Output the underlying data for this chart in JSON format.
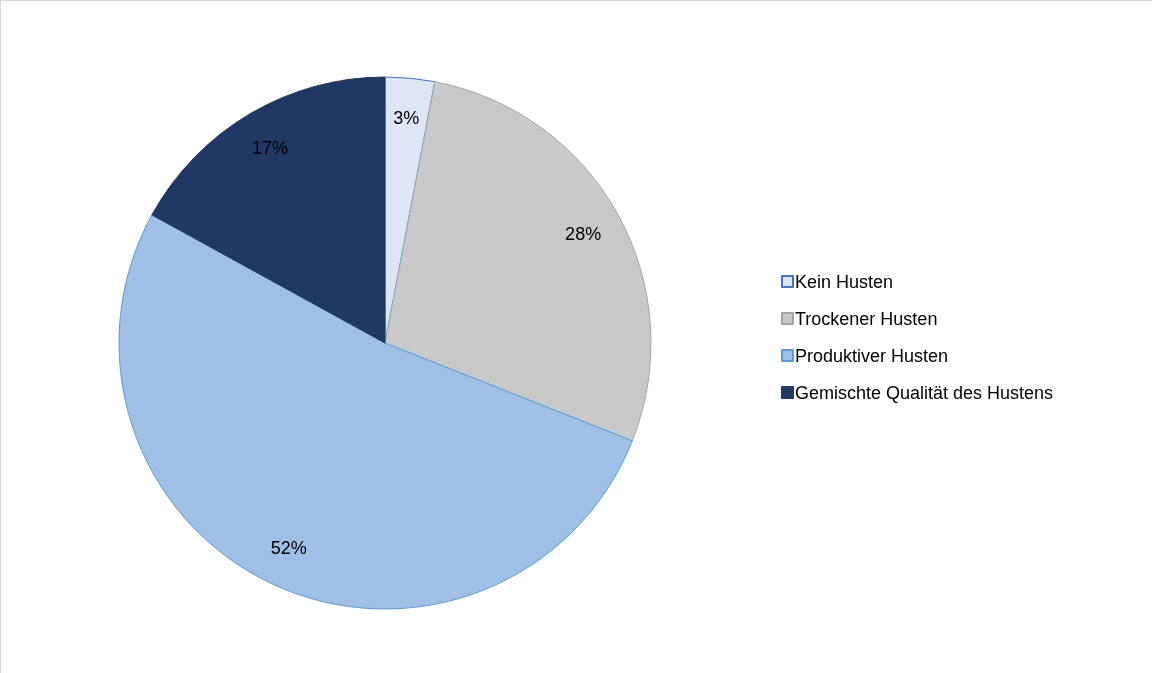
{
  "chart_data": {
    "type": "pie",
    "categories": [
      "Kein Husten",
      "Trockener Husten",
      "Produktiver Husten",
      "Gemischte Qualität des Hustens"
    ],
    "values": [
      3,
      28,
      52,
      17
    ],
    "colors": [
      "#dce6f5",
      "#c9c9c9",
      "#a0bfe6",
      "#203864"
    ],
    "value_labels": [
      "3%",
      "28%",
      "52%",
      "17%"
    ],
    "legend": "right"
  }
}
